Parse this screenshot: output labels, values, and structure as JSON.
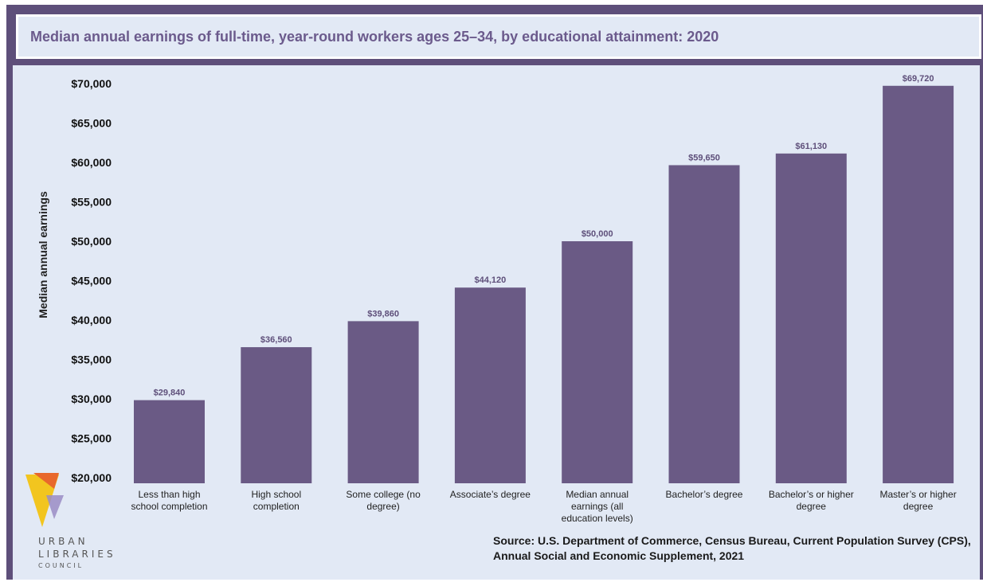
{
  "chart_data": {
    "type": "bar",
    "title": "Median annual earnings of full-time, year-round workers ages 25–34, by educational attainment: 2020",
    "ylabel": "Median annual earnings",
    "xlabel": "",
    "ylim": [
      20000,
      70000
    ],
    "yticks": [
      "$20,000",
      "$25,000",
      "$30,000",
      "$35,000",
      "$40,000",
      "$45,000",
      "$50,000",
      "$55,000",
      "$60,000",
      "$65,000",
      "$70,000"
    ],
    "categories": [
      "Less than high school completion",
      "High school completion",
      "Some college (no degree)",
      "Associate's degree",
      "Median annual earnings (all education levels)",
      "Bachelor's degree",
      "Bachelor's or higher degree",
      "Master's or higher degree"
    ],
    "values": [
      29840,
      36560,
      39860,
      44120,
      50000,
      59650,
      61130,
      69720
    ],
    "value_labels": [
      "$29,840",
      "$36,560",
      "$39,860",
      "$44,120",
      "$50,000",
      "$59,650",
      "$61,130",
      "$69,720"
    ],
    "bar_color": "#6a5a85",
    "grid": false
  },
  "source": "Source: U.S. Department of Commerce, Census Bureau, Current Population Survey (CPS), Annual Social and Economic Supplement, 2021",
  "logo": {
    "line1": "URBAN",
    "line2": "LIBRARIES",
    "line3": "COUNCIL"
  }
}
